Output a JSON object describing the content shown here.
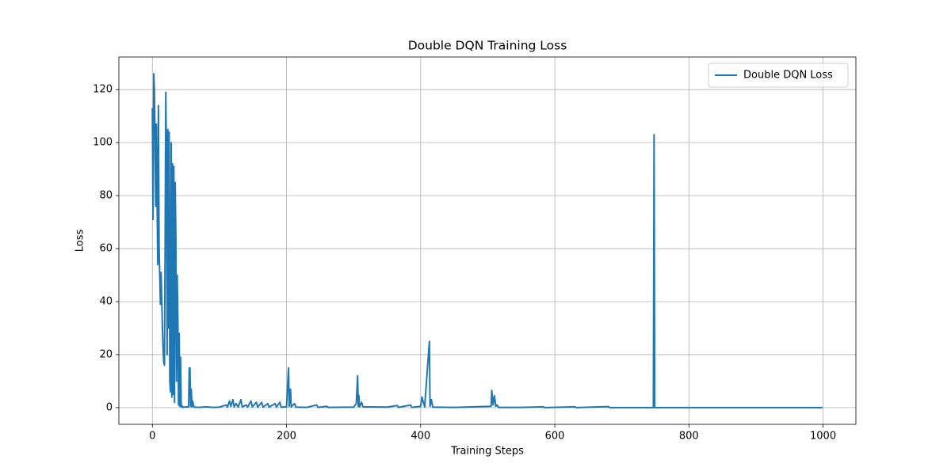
{
  "chart_data": {
    "type": "line",
    "title": "Double DQN Training Loss",
    "xlabel": "Training Steps",
    "ylabel": "Loss",
    "x": [
      0,
      1,
      2,
      3,
      4,
      5,
      6,
      7,
      8,
      9,
      10,
      11,
      12,
      13,
      14,
      15,
      16,
      17,
      18,
      19,
      20,
      21,
      22,
      23,
      24,
      25,
      26,
      27,
      28,
      29,
      30,
      31,
      32,
      33,
      34,
      35,
      36,
      37,
      38,
      39,
      40,
      41,
      42,
      43,
      44,
      45,
      46,
      50,
      54,
      55,
      56,
      57,
      58,
      59,
      60,
      62,
      70,
      80,
      90,
      100,
      110,
      112,
      115,
      117,
      120,
      122,
      125,
      128,
      132,
      134,
      140,
      142,
      147,
      149,
      155,
      157,
      163,
      165,
      172,
      174,
      183,
      185,
      190,
      192,
      200,
      203,
      204,
      206,
      207,
      212,
      214,
      230,
      245,
      247,
      260,
      262,
      300,
      304,
      306,
      307,
      308,
      309,
      312,
      314,
      350,
      365,
      367,
      385,
      387,
      400,
      402,
      404,
      406,
      413,
      414,
      416,
      418,
      450,
      505,
      506,
      508,
      510,
      512,
      514,
      516,
      550,
      583,
      585,
      630,
      632,
      680,
      682,
      747,
      748,
      749,
      800,
      900,
      999
    ],
    "series": [
      {
        "name": "Double DQN Loss",
        "color": "#1f77b4",
        "values": [
          113,
          71,
          126,
          120,
          100,
          76,
          107,
          80,
          54,
          114,
          60,
          50,
          39,
          51,
          40,
          30,
          22,
          17,
          16,
          60,
          119,
          90,
          20,
          105,
          30,
          104,
          10,
          6,
          100,
          4,
          92,
          5,
          91,
          2,
          85,
          65,
          10,
          50,
          34,
          1,
          28,
          0.5,
          19,
          0.3,
          0.2,
          0.5,
          0.1,
          0.3,
          0.2,
          15,
          15,
          0.5,
          7,
          0.3,
          2.5,
          0.2,
          0.1,
          0.3,
          0.1,
          0.2,
          1,
          0.2,
          2.5,
          0.5,
          3,
          0.3,
          1.5,
          0.2,
          3,
          0.3,
          1,
          0.2,
          2.5,
          0.3,
          2,
          0.2,
          2,
          0.2,
          1.5,
          0.2,
          1.5,
          0.2,
          2,
          0.2,
          0.3,
          15,
          0.5,
          7,
          0.3,
          1.5,
          0.2,
          0.1,
          1,
          0.1,
          0.5,
          0.1,
          0.2,
          1.5,
          12,
          0.5,
          4.5,
          0.3,
          2,
          0.3,
          0.2,
          0.8,
          0.1,
          1,
          0.1,
          0.5,
          4,
          2,
          0.3,
          25,
          0.5,
          3,
          0.2,
          0.1,
          0.5,
          6.5,
          1,
          4.5,
          0.5,
          1,
          0.1,
          0.1,
          0.3,
          0,
          0.3,
          0,
          0.4,
          0,
          0,
          103,
          0,
          0,
          0,
          0
        ]
      }
    ],
    "xlim": [
      -49.95,
      1048.95
    ],
    "xticks": [
      0,
      200,
      400,
      600,
      800,
      1000
    ],
    "ylim": [
      -6.3,
      132.3
    ],
    "yticks": [
      0,
      20,
      40,
      60,
      80,
      100,
      120
    ],
    "grid": true,
    "legend": "upper right"
  }
}
